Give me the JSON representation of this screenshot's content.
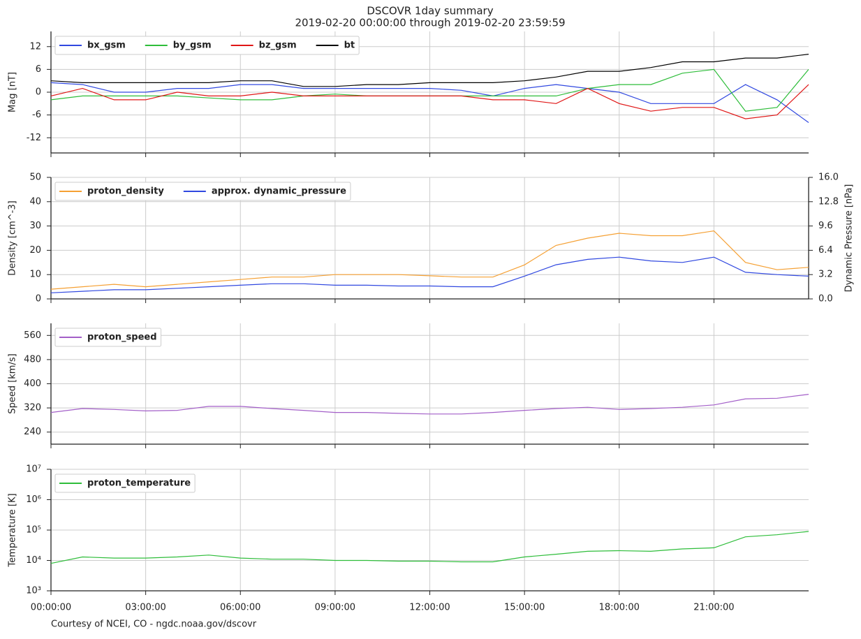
{
  "title": "DSCOVR 1day summary",
  "subtitle": "2019-02-20 00:00:00 through 2019-02-20 23:59:59",
  "credit": "Courtesy of NCEI, CO - ngdc.noaa.gov/dscovr",
  "chart_data": [
    {
      "type": "line",
      "ylabel": "Mag   [nT]",
      "grid": true,
      "legend": "top-left",
      "legend_layout": "row",
      "x": [
        "00:00:00",
        "01:00:00",
        "02:00:00",
        "03:00:00",
        "04:00:00",
        "05:00:00",
        "06:00:00",
        "07:00:00",
        "08:00:00",
        "09:00:00",
        "10:00:00",
        "11:00:00",
        "12:00:00",
        "13:00:00",
        "14:00:00",
        "15:00:00",
        "16:00:00",
        "17:00:00",
        "18:00:00",
        "19:00:00",
        "20:00:00",
        "21:00:00",
        "22:00:00",
        "23:00:00",
        "23:59:59"
      ],
      "xlim": [
        "00:00:00",
        "23:59:59"
      ],
      "ylim": [
        -16,
        16
      ],
      "yticks": [
        -12,
        -6,
        0,
        6,
        12
      ],
      "series": [
        {
          "name": "bx_gsm",
          "color": "#3048e0",
          "values": [
            2.5,
            2,
            0,
            0,
            1,
            1,
            2,
            2,
            1,
            1,
            1,
            1,
            1,
            0.5,
            -1,
            1,
            2,
            1,
            0,
            -3,
            -3,
            -3,
            2,
            -2,
            -8
          ]
        },
        {
          "name": "by_gsm",
          "color": "#2ebd3a",
          "values": [
            -2,
            -1,
            -1,
            -1,
            -1,
            -1.5,
            -2,
            -2,
            -1,
            -0.5,
            -1,
            -1,
            -1,
            -1,
            -1,
            -1,
            -1,
            1,
            2,
            2,
            5,
            6,
            -5,
            -4,
            6
          ]
        },
        {
          "name": "bz_gsm",
          "color": "#e01515",
          "values": [
            -1,
            1,
            -2,
            -2,
            0,
            -1,
            -1,
            0,
            -1,
            -1,
            -1,
            -1,
            -1,
            -1,
            -2,
            -2,
            -3,
            1,
            -3,
            -5,
            -4,
            -4,
            -7,
            -6,
            2
          ]
        },
        {
          "name": "bt",
          "color": "#000000",
          "values": [
            3,
            2.5,
            2.5,
            2.5,
            2.5,
            2.5,
            3,
            3,
            1.5,
            1.5,
            2,
            2,
            2.5,
            2.5,
            2.5,
            3,
            4,
            5.5,
            5.5,
            6.5,
            8,
            8,
            9,
            9,
            10
          ]
        }
      ]
    },
    {
      "type": "line",
      "ylabel": "Density   [cm^-3]",
      "y2label": "Dynamic Pressure   [nPa]",
      "grid": true,
      "legend": "top-left",
      "legend_layout": "row",
      "x": [
        "00:00:00",
        "01:00:00",
        "02:00:00",
        "03:00:00",
        "04:00:00",
        "05:00:00",
        "06:00:00",
        "07:00:00",
        "08:00:00",
        "09:00:00",
        "10:00:00",
        "11:00:00",
        "12:00:00",
        "13:00:00",
        "14:00:00",
        "15:00:00",
        "16:00:00",
        "17:00:00",
        "18:00:00",
        "19:00:00",
        "20:00:00",
        "21:00:00",
        "22:00:00",
        "23:00:00",
        "23:59:59"
      ],
      "xlim": [
        "00:00:00",
        "23:59:59"
      ],
      "ylim": [
        0,
        50
      ],
      "yticks": [
        0,
        10,
        20,
        30,
        40,
        50
      ],
      "y2lim": [
        0,
        16
      ],
      "y2ticks": [
        {
          "value": 0,
          "label": "0.0"
        },
        3.2,
        6.4,
        9.6,
        12.8,
        {
          "value": 16,
          "label": "16.0"
        }
      ],
      "series": [
        {
          "name": "proton_density",
          "color": "#f5a033",
          "values": [
            4,
            5,
            6,
            5,
            6,
            7,
            8,
            9,
            9,
            10,
            10,
            10,
            9.5,
            9,
            9,
            14,
            22,
            25,
            27,
            26,
            26,
            28,
            15,
            12,
            13
          ]
        },
        {
          "name": "approx. dynamic_pressure",
          "color": "#3048e0",
          "axis": "y2",
          "values": [
            0.8,
            1,
            1.2,
            1.2,
            1.4,
            1.6,
            1.8,
            2,
            2,
            1.8,
            1.8,
            1.7,
            1.7,
            1.6,
            1.6,
            3,
            4.5,
            5.2,
            5.5,
            5,
            4.8,
            5.5,
            3.5,
            3.2,
            3
          ]
        }
      ]
    },
    {
      "type": "line",
      "ylabel": "Speed   [km/s]",
      "grid": true,
      "legend": "top-left",
      "legend_layout": "row",
      "x": [
        "00:00:00",
        "01:00:00",
        "02:00:00",
        "03:00:00",
        "04:00:00",
        "05:00:00",
        "06:00:00",
        "07:00:00",
        "08:00:00",
        "09:00:00",
        "10:00:00",
        "11:00:00",
        "12:00:00",
        "13:00:00",
        "14:00:00",
        "15:00:00",
        "16:00:00",
        "17:00:00",
        "18:00:00",
        "19:00:00",
        "20:00:00",
        "21:00:00",
        "22:00:00",
        "23:00:00",
        "23:59:59"
      ],
      "xlim": [
        "00:00:00",
        "23:59:59"
      ],
      "ylim": [
        200,
        600
      ],
      "yticks": [
        240,
        320,
        400,
        480,
        560
      ],
      "series": [
        {
          "name": "proton_speed",
          "color": "#a35fc8",
          "values": [
            305,
            318,
            315,
            310,
            312,
            325,
            325,
            318,
            312,
            305,
            305,
            302,
            300,
            300,
            305,
            312,
            318,
            322,
            315,
            318,
            322,
            330,
            350,
            352,
            365
          ]
        }
      ]
    },
    {
      "type": "line",
      "ylabel": "Temperature   [K]",
      "grid": true,
      "log_scale": true,
      "legend": "top-left",
      "legend_layout": "row",
      "x": [
        "00:00:00",
        "01:00:00",
        "02:00:00",
        "03:00:00",
        "04:00:00",
        "05:00:00",
        "06:00:00",
        "07:00:00",
        "08:00:00",
        "09:00:00",
        "10:00:00",
        "11:00:00",
        "12:00:00",
        "13:00:00",
        "14:00:00",
        "15:00:00",
        "16:00:00",
        "17:00:00",
        "18:00:00",
        "19:00:00",
        "20:00:00",
        "21:00:00",
        "22:00:00",
        "23:00:00",
        "23:59:59"
      ],
      "xlim": [
        "00:00:00",
        "23:59:59"
      ],
      "xticks": [
        "00:00:00",
        "03:00:00",
        "06:00:00",
        "09:00:00",
        "12:00:00",
        "15:00:00",
        "18:00:00",
        "21:00:00"
      ],
      "ylim": [
        1000,
        10000000
      ],
      "yticks": [
        {
          "value": 1000,
          "label": "10³"
        },
        {
          "value": 10000,
          "label": "10⁴"
        },
        {
          "value": 100000,
          "label": "10⁵"
        },
        {
          "value": 1000000,
          "label": "10⁶"
        },
        {
          "value": 10000000,
          "label": "10⁷"
        }
      ],
      "series": [
        {
          "name": "proton_temperature",
          "color": "#2ebd3a",
          "values": [
            8000,
            13000,
            12000,
            12000,
            13000,
            15000,
            12000,
            11000,
            11000,
            10000,
            10000,
            9500,
            9500,
            9000,
            9000,
            13000,
            16000,
            20000,
            21000,
            20000,
            24000,
            26000,
            60000,
            70000,
            90000
          ]
        }
      ]
    }
  ]
}
